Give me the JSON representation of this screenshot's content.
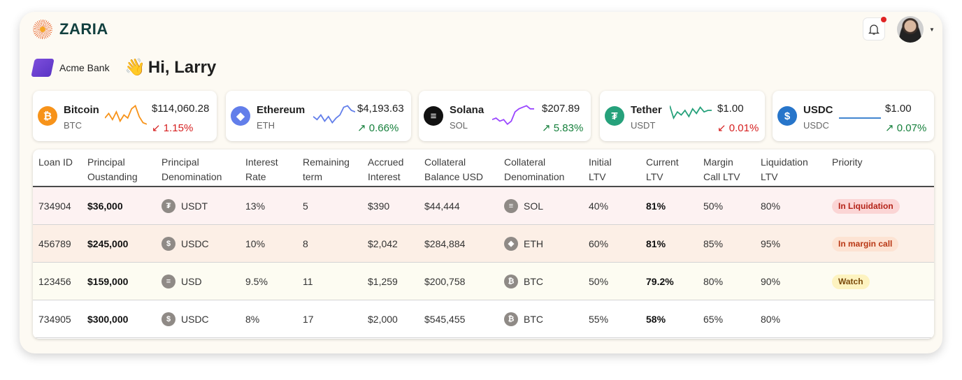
{
  "brand": {
    "name": "ZARIA"
  },
  "header": {
    "notification_icon": "bell-icon",
    "has_unread": true,
    "account_menu_icon": "caret-down-icon"
  },
  "org": {
    "name": "Acme Bank"
  },
  "greeting": {
    "emoji": "👋",
    "text": "Hi, Larry"
  },
  "colors": {
    "up": "#16803c",
    "down": "#d61f1f"
  },
  "coins": [
    {
      "name": "Bitcoin",
      "symbol": "BTC",
      "price": "$114,060.28",
      "change": "1.15%",
      "direction": "down",
      "color": "#f7931a",
      "glyph": "₿",
      "trend": [
        5,
        8,
        4,
        9,
        3,
        7,
        5,
        11,
        13,
        6,
        2,
        1
      ]
    },
    {
      "name": "Ethereum",
      "symbol": "ETH",
      "price": "$4,193.63",
      "change": "0.66%",
      "direction": "up",
      "color": "#627eea",
      "glyph": "◆",
      "trend": [
        6,
        4,
        7,
        3,
        6,
        2,
        5,
        7,
        12,
        13,
        10,
        9
      ]
    },
    {
      "name": "Solana",
      "symbol": "SOL",
      "price": "$207.89",
      "change": "5.83%",
      "direction": "up",
      "color": "#111111",
      "glyph": "≡",
      "trend": [
        4,
        5,
        3,
        4,
        1,
        3,
        9,
        11,
        12,
        13,
        11,
        11
      ]
    },
    {
      "name": "Tether",
      "symbol": "USDT",
      "price": "$1.00",
      "change": "0.01%",
      "direction": "down",
      "color": "#26a17b",
      "glyph": "₮",
      "trend": [
        13,
        5,
        9,
        7,
        10,
        6,
        11,
        8,
        12,
        9,
        10,
        10
      ]
    },
    {
      "name": "USDC",
      "symbol": "USDC",
      "price": "$1.00",
      "change": "0.07%",
      "direction": "up",
      "color": "#2775ca",
      "glyph": "$",
      "trend": [
        5,
        5,
        5,
        5,
        5,
        5,
        5,
        5,
        5,
        5,
        5,
        5
      ]
    }
  ],
  "table": {
    "headers": [
      [
        "Loan ID",
        ""
      ],
      [
        "Principal",
        "Oustanding"
      ],
      [
        "Principal",
        "Denomination"
      ],
      [
        "Interest",
        "Rate"
      ],
      [
        "Remaining",
        "term"
      ],
      [
        "Accrued",
        "Interest"
      ],
      [
        "Collateral",
        "Balance USD"
      ],
      [
        "Collateral",
        "Denomination"
      ],
      [
        "Initial",
        "LTV"
      ],
      [
        "Current",
        "LTV"
      ],
      [
        "Margin",
        "Call LTV"
      ],
      [
        "Liquidation",
        "LTV"
      ],
      [
        "Priority",
        ""
      ]
    ],
    "rows": [
      {
        "id": "734904",
        "principal": "$36,000",
        "denom": "USDT",
        "denom_glyph": "₮",
        "rate": "13%",
        "term": "5",
        "accrued": "$390",
        "coll_bal": "$44,444",
        "coll": "SOL",
        "coll_glyph": "≡",
        "initial": "40%",
        "current": "81%",
        "margin": "50%",
        "liq": "80%",
        "priority": "In Liquidation",
        "row_bg": "#fdf2f2",
        "badge_bg": "#fbd5d5",
        "badge_fg": "#b42318"
      },
      {
        "id": "456789",
        "principal": "$245,000",
        "denom": "USDC",
        "denom_glyph": "$",
        "rate": "10%",
        "term": "8",
        "accrued": "$2,042",
        "coll_bal": "$284,884",
        "coll": "ETH",
        "coll_glyph": "◆",
        "initial": "60%",
        "current": "81%",
        "margin": "85%",
        "liq": "95%",
        "priority": "In margin call",
        "row_bg": "#fcefe6",
        "badge_bg": "#fde3d3",
        "badge_fg": "#b93815"
      },
      {
        "id": "123456",
        "principal": "$159,000",
        "denom": "USD",
        "denom_glyph": "≡",
        "rate": "9.5%",
        "term": "11",
        "accrued": "$1,259",
        "coll_bal": "$200,758",
        "coll": "BTC",
        "coll_glyph": "₿",
        "initial": "50%",
        "current": "79.2%",
        "margin": "80%",
        "liq": "90%",
        "priority": "Watch",
        "row_bg": "#fdfcf2",
        "badge_bg": "#fdf3c0",
        "badge_fg": "#7a4a0a"
      },
      {
        "id": "734905",
        "principal": "$300,000",
        "denom": "USDC",
        "denom_glyph": "$",
        "rate": "8%",
        "term": "17",
        "accrued": "$2,000",
        "coll_bal": "$545,455",
        "coll": "BTC",
        "coll_glyph": "₿",
        "initial": "55%",
        "current": "58%",
        "margin": "65%",
        "liq": "80%",
        "priority": "",
        "row_bg": "#ffffff",
        "badge_bg": "",
        "badge_fg": ""
      }
    ]
  }
}
